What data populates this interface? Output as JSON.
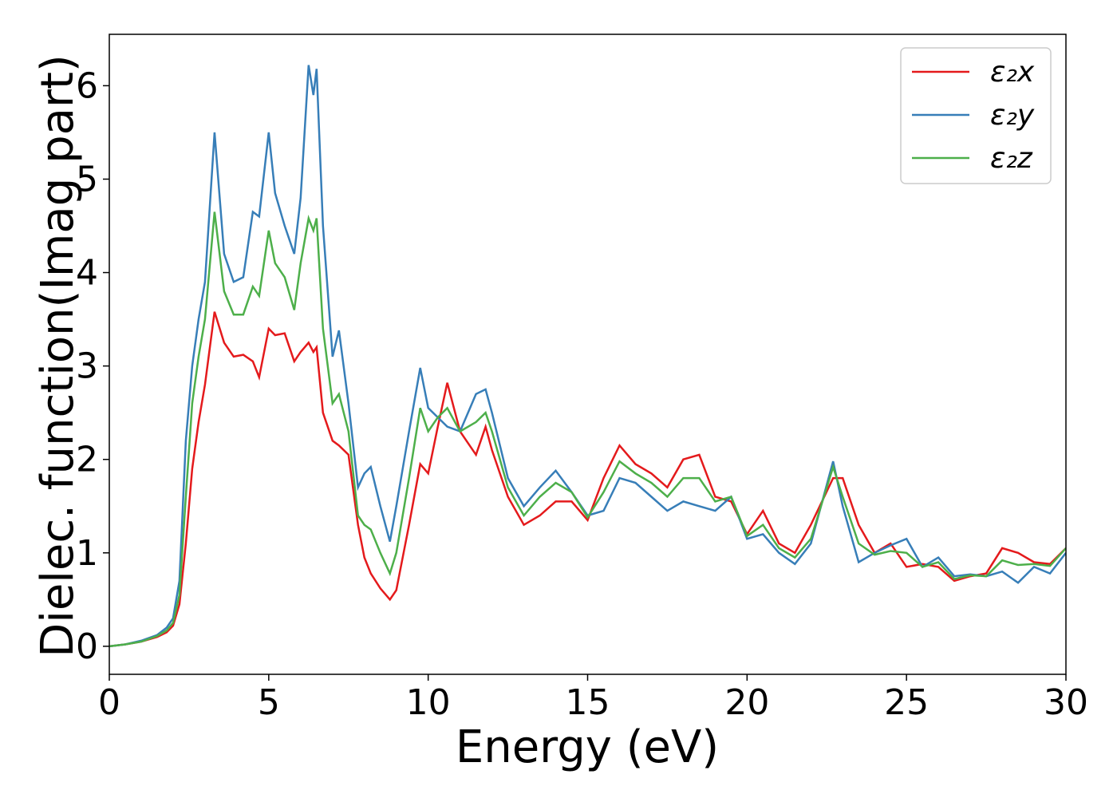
{
  "chart_data": {
    "type": "line",
    "xlabel": "Energy (eV)",
    "ylabel": "Dielec. function(Imag part)",
    "x": [
      0,
      0.5,
      1,
      1.5,
      1.8,
      2,
      2.2,
      2.4,
      2.6,
      2.8,
      3,
      3.3,
      3.6,
      3.9,
      4.2,
      4.5,
      4.7,
      5,
      5.2,
      5.5,
      5.8,
      6,
      6.25,
      6.4,
      6.5,
      6.7,
      7,
      7.2,
      7.5,
      7.8,
      8,
      8.2,
      8.5,
      8.8,
      9,
      9.4,
      9.75,
      10,
      10.3,
      10.6,
      11,
      11.5,
      11.8,
      12,
      12.5,
      13,
      13.5,
      14,
      14.5,
      15,
      15.5,
      16,
      16.5,
      17,
      17.5,
      18,
      18.5,
      19,
      19.5,
      20,
      20.5,
      21,
      21.5,
      22,
      22.7,
      23,
      23.5,
      24,
      24.5,
      25,
      25.5,
      26,
      26.5,
      27,
      27.5,
      28,
      28.5,
      29,
      29.5,
      30
    ],
    "series": [
      {
        "name": "ε₂x",
        "color": "#e41a1c",
        "values": [
          0,
          0.02,
          0.05,
          0.1,
          0.15,
          0.22,
          0.45,
          1.1,
          1.9,
          2.4,
          2.8,
          3.58,
          3.25,
          3.1,
          3.12,
          3.05,
          2.88,
          3.4,
          3.33,
          3.35,
          3.05,
          3.15,
          3.25,
          3.15,
          3.2,
          2.5,
          2.2,
          2.15,
          2.05,
          1.3,
          0.95,
          0.78,
          0.62,
          0.5,
          0.6,
          1.3,
          1.95,
          1.85,
          2.35,
          2.82,
          2.3,
          2.05,
          2.35,
          2.1,
          1.6,
          1.3,
          1.4,
          1.55,
          1.55,
          1.35,
          1.8,
          2.15,
          1.95,
          1.85,
          1.7,
          2.0,
          2.05,
          1.6,
          1.55,
          1.2,
          1.45,
          1.1,
          1.0,
          1.3,
          1.8,
          1.8,
          1.3,
          1.0,
          1.1,
          0.85,
          0.88,
          0.85,
          0.7,
          0.75,
          0.78,
          1.05,
          1.0,
          0.9,
          0.88,
          1.05
        ]
      },
      {
        "name": "ε₂y",
        "color": "#377eb8",
        "values": [
          0,
          0.02,
          0.06,
          0.12,
          0.2,
          0.3,
          0.7,
          2.2,
          3.0,
          3.5,
          3.9,
          5.5,
          4.2,
          3.9,
          3.95,
          4.65,
          4.6,
          5.5,
          4.85,
          4.5,
          4.2,
          4.8,
          6.22,
          5.9,
          6.18,
          4.5,
          3.1,
          3.38,
          2.6,
          1.7,
          1.85,
          1.92,
          1.5,
          1.12,
          1.5,
          2.3,
          2.98,
          2.55,
          2.45,
          2.35,
          2.3,
          2.7,
          2.75,
          2.5,
          1.8,
          1.5,
          1.7,
          1.88,
          1.65,
          1.4,
          1.45,
          1.8,
          1.75,
          1.6,
          1.45,
          1.55,
          1.5,
          1.45,
          1.6,
          1.15,
          1.2,
          1.0,
          0.88,
          1.1,
          1.98,
          1.5,
          0.9,
          1.0,
          1.08,
          1.15,
          0.85,
          0.95,
          0.75,
          0.77,
          0.75,
          0.8,
          0.68,
          0.85,
          0.78,
          1.0
        ]
      },
      {
        "name": "ε₂z",
        "color": "#4daf4a",
        "values": [
          0,
          0.02,
          0.05,
          0.11,
          0.17,
          0.25,
          0.55,
          1.6,
          2.6,
          3.1,
          3.5,
          4.65,
          3.8,
          3.55,
          3.55,
          3.85,
          3.75,
          4.45,
          4.1,
          3.95,
          3.6,
          4.1,
          4.58,
          4.45,
          4.58,
          3.4,
          2.6,
          2.7,
          2.3,
          1.4,
          1.3,
          1.25,
          1.0,
          0.78,
          1.0,
          1.8,
          2.55,
          2.3,
          2.45,
          2.55,
          2.3,
          2.4,
          2.5,
          2.3,
          1.7,
          1.4,
          1.6,
          1.75,
          1.65,
          1.38,
          1.65,
          1.98,
          1.85,
          1.75,
          1.6,
          1.8,
          1.8,
          1.55,
          1.6,
          1.18,
          1.3,
          1.05,
          0.95,
          1.15,
          1.92,
          1.6,
          1.1,
          0.98,
          1.02,
          1.0,
          0.85,
          0.9,
          0.72,
          0.76,
          0.75,
          0.92,
          0.87,
          0.88,
          0.86,
          1.05
        ]
      }
    ],
    "xlim": [
      0,
      30
    ],
    "xticks": [
      0,
      5,
      10,
      15,
      20,
      25,
      30
    ],
    "ylim": [
      -0.3,
      6.55
    ],
    "yticks": [
      0,
      1,
      2,
      3,
      4,
      5,
      6
    ],
    "grid": false,
    "legend": "upper right"
  }
}
